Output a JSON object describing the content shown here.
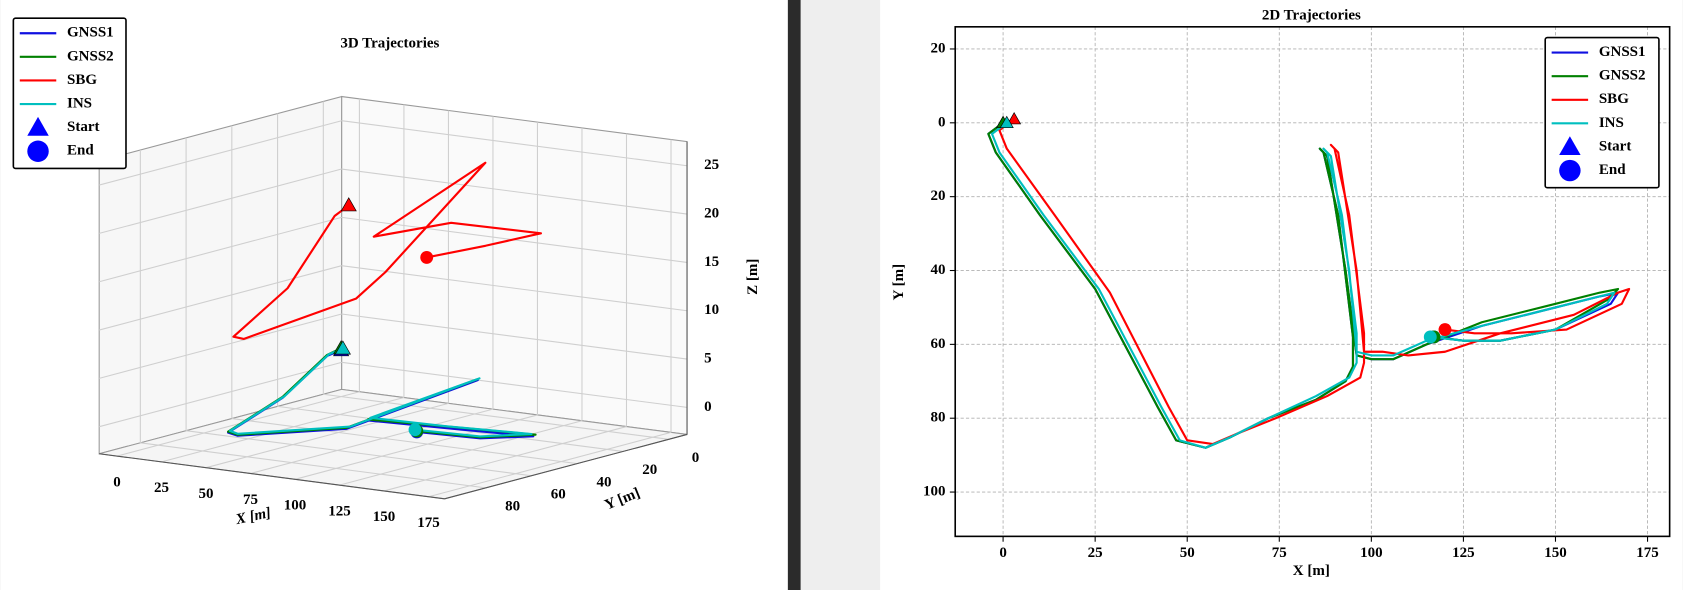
{
  "chart_data": [
    {
      "type": "line3d",
      "title": "3D Trajectories",
      "xlabel": "X [m]",
      "ylabel": "Y [m]",
      "zlabel": "Z [m]",
      "xlim": [
        -10,
        184
      ],
      "ylim": [
        -8,
        98
      ],
      "zlim": [
        -2.8,
        27.5
      ],
      "xticks": [
        0,
        25,
        50,
        75,
        100,
        125,
        150,
        175
      ],
      "yticks": [
        0,
        20,
        40,
        60,
        80
      ],
      "zticks": [
        0,
        5,
        10,
        15,
        20,
        25
      ],
      "grid": true,
      "legend": "upper left",
      "series": [
        {
          "name": "GNSS1",
          "color": "#1010e0",
          "x": [
            0,
            -4,
            25,
            47,
            55,
            93,
            95,
            87,
            96,
            130,
            167,
            150,
            117
          ],
          "y": [
            0,
            3,
            45,
            86,
            88,
            70,
            58,
            8,
            63,
            55,
            46,
            56,
            58
          ],
          "z": [
            2,
            1.5,
            0.5,
            0,
            0,
            0.5,
            1,
            1.5,
            1,
            0.5,
            0,
            0,
            0
          ]
        },
        {
          "name": "GNSS2",
          "color": "#008000",
          "x": [
            0,
            -4,
            25,
            47,
            55,
            93,
            95,
            87,
            96,
            130,
            167,
            150,
            117
          ],
          "y": [
            0,
            3,
            45,
            86,
            88,
            70,
            58,
            8,
            63,
            54,
            45,
            56,
            58
          ],
          "z": [
            2.2,
            1.6,
            0.6,
            0.1,
            0.1,
            0.6,
            1.1,
            1.6,
            1.1,
            0.6,
            0.1,
            0.1,
            0.1
          ]
        },
        {
          "name": "SBG",
          "color": "#ff0000",
          "x": [
            3,
            -1,
            29,
            50,
            57,
            97,
            98,
            90,
            98,
            135,
            170,
            153,
            120
          ],
          "y": [
            -1,
            2,
            46,
            86,
            87,
            69,
            57,
            7,
            62,
            57,
            45,
            56,
            56
          ],
          "z": [
            17,
            16,
            12,
            10,
            10,
            14,
            16,
            24,
            20,
            22,
            21,
            20,
            18
          ]
        },
        {
          "name": "INS",
          "color": "#00bfbf",
          "x": [
            1,
            -3,
            26,
            48,
            55,
            94,
            96,
            88,
            96,
            130,
            166,
            150,
            116
          ],
          "y": [
            0,
            3,
            45,
            86,
            88,
            69,
            57,
            8,
            62,
            55,
            46,
            56,
            58
          ],
          "z": [
            2.2,
            1.7,
            0.7,
            0.2,
            0.2,
            0.7,
            1.2,
            1.7,
            1.2,
            0.7,
            0.2,
            0.2,
            0.2
          ]
        }
      ],
      "legend_markers": [
        {
          "label": "Start",
          "marker": "triangle",
          "color": "#0000ff"
        },
        {
          "label": "End",
          "marker": "circle",
          "color": "#0000ff"
        }
      ]
    },
    {
      "type": "line",
      "title": "2D Trajectories",
      "xlabel": "X [m]",
      "ylabel": "Y [m]",
      "xlim": [
        -13,
        181
      ],
      "ylim": [
        -26,
        112
      ],
      "invert_y": true,
      "xticks": [
        0,
        25,
        50,
        75,
        100,
        125,
        150,
        175
      ],
      "yticks": [
        {
          "value": -20,
          "label": "20"
        },
        0,
        20,
        40,
        60,
        80,
        100
      ],
      "grid": true,
      "legend": "upper right",
      "series": [
        {
          "name": "GNSS1",
          "color": "#1010e0",
          "x": [
            0,
            -4,
            -2,
            10,
            25,
            42,
            47,
            55,
            62,
            72,
            85,
            93,
            95,
            95,
            91,
            87,
            86,
            88,
            93,
            96,
            100,
            106,
            115,
            130,
            150,
            162,
            167,
            165,
            150,
            135,
            125,
            117
          ],
          "y": [
            0,
            3,
            8,
            25,
            45,
            77,
            86,
            88,
            85,
            80,
            75,
            70,
            66,
            58,
            25,
            8,
            7,
            9,
            40,
            63,
            64,
            64,
            60,
            55,
            50,
            47,
            46,
            49,
            56,
            59,
            59,
            58
          ]
        },
        {
          "name": "GNSS2",
          "color": "#008000",
          "x": [
            0,
            -4,
            -2,
            10,
            25,
            42,
            47,
            55,
            62,
            72,
            85,
            93,
            95,
            95,
            91,
            87,
            86,
            88,
            93,
            96,
            100,
            106,
            115,
            130,
            150,
            162,
            167,
            164,
            150,
            135,
            125,
            117
          ],
          "y": [
            0,
            3,
            8,
            25,
            45,
            77,
            86,
            88,
            85,
            80,
            75,
            70,
            66,
            58,
            25,
            8,
            7,
            9,
            40,
            63,
            64,
            64,
            60,
            54,
            49,
            46,
            45,
            48,
            56,
            59,
            59,
            58
          ]
        },
        {
          "name": "SBG",
          "color": "#ff0000",
          "x": [
            3,
            -1,
            1,
            14,
            29,
            45,
            50,
            57,
            64,
            74,
            88,
            97,
            98,
            98,
            94,
            90,
            89,
            91,
            96,
            98,
            103,
            110,
            120,
            135,
            155,
            167,
            170,
            168,
            153,
            138,
            128,
            120
          ],
          "y": [
            -1,
            2,
            7,
            25,
            46,
            77,
            86,
            87,
            84,
            80,
            74,
            69,
            65,
            57,
            25,
            7,
            6,
            8,
            40,
            62,
            62,
            63,
            62,
            57,
            52,
            46,
            45,
            49,
            56,
            57,
            57,
            56
          ]
        },
        {
          "name": "INS",
          "color": "#00bfbf",
          "x": [
            1,
            -3,
            -1,
            11,
            26,
            43,
            48,
            55,
            62,
            72,
            85,
            94,
            96,
            96,
            92,
            88,
            87,
            89,
            94,
            96,
            100,
            106,
            115,
            130,
            150,
            162,
            166,
            164,
            150,
            135,
            125,
            116
          ],
          "y": [
            0,
            3,
            8,
            25,
            45,
            77,
            86,
            88,
            85,
            80,
            74,
            69,
            65,
            57,
            25,
            8,
            7,
            9,
            40,
            62,
            63,
            63,
            59,
            55,
            50,
            47,
            46,
            49,
            56,
            59,
            59,
            58
          ]
        }
      ],
      "legend_markers": [
        {
          "label": "Start",
          "marker": "triangle",
          "color": "#0000ff"
        },
        {
          "label": "End",
          "marker": "circle",
          "color": "#0000ff"
        }
      ]
    }
  ]
}
